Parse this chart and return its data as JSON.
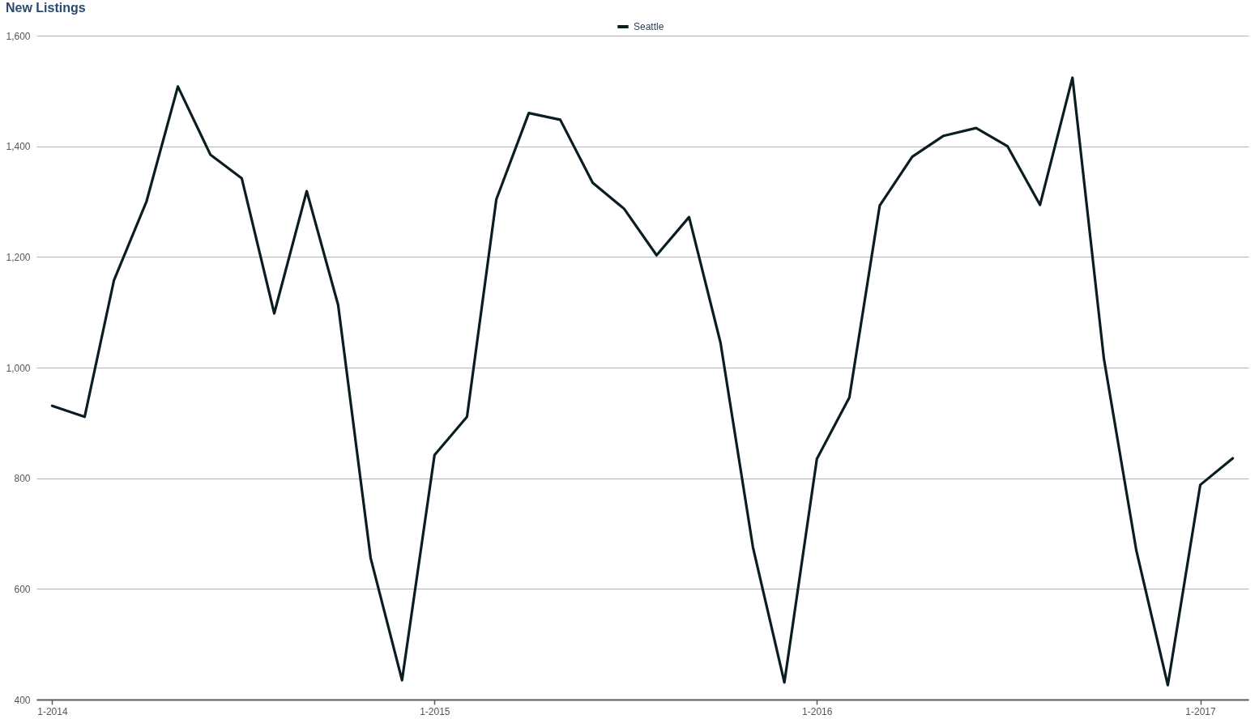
{
  "chart_data": {
    "type": "line",
    "title": "New Listings",
    "x": [
      "2014-01",
      "2014-02",
      "2014-03",
      "2014-04",
      "2014-05",
      "2014-06",
      "2014-07",
      "2014-08",
      "2014-09",
      "2014-10",
      "2014-11",
      "2014-12",
      "2015-01",
      "2015-02",
      "2015-03",
      "2015-04",
      "2015-05",
      "2015-06",
      "2015-07",
      "2015-08",
      "2015-09",
      "2015-10",
      "2015-11",
      "2015-12",
      "2016-01",
      "2016-02",
      "2016-03",
      "2016-04",
      "2016-05",
      "2016-06",
      "2016-07",
      "2016-08",
      "2016-09",
      "2016-10",
      "2016-11",
      "2016-12",
      "2017-01",
      "2017-02"
    ],
    "series": [
      {
        "name": "Seattle",
        "color": "#0a1d22",
        "values": [
          931,
          911,
          1158,
          1300,
          1508,
          1385,
          1342,
          1098,
          1319,
          1113,
          656,
          435,
          842,
          911,
          1304,
          1460,
          1448,
          1334,
          1287,
          1203,
          1272,
          1045,
          675,
          431,
          835,
          946,
          1293,
          1381,
          1419,
          1433,
          1400,
          1294,
          1524,
          1016,
          669,
          426,
          788,
          836
        ]
      }
    ],
    "xlim": [
      "2013-12-17",
      "2017-02-16"
    ],
    "xticks": [
      {
        "value": "2014-01",
        "label": "1-2014"
      },
      {
        "value": "2015-01",
        "label": "1-2015"
      },
      {
        "value": "2016-01",
        "label": "1-2016"
      },
      {
        "value": "2017-01",
        "label": "1-2017"
      }
    ],
    "ylim": [
      400,
      1600
    ],
    "yticks": [
      {
        "value": 400,
        "label": "400"
      },
      {
        "value": 600,
        "label": "600"
      },
      {
        "value": 800,
        "label": "800"
      },
      {
        "value": 1000,
        "label": "1,000"
      },
      {
        "value": 1200,
        "label": "1,200"
      },
      {
        "value": 1400,
        "label": "1,400"
      },
      {
        "value": 1600,
        "label": "1,600"
      }
    ],
    "grid": "y",
    "legend": "top"
  }
}
